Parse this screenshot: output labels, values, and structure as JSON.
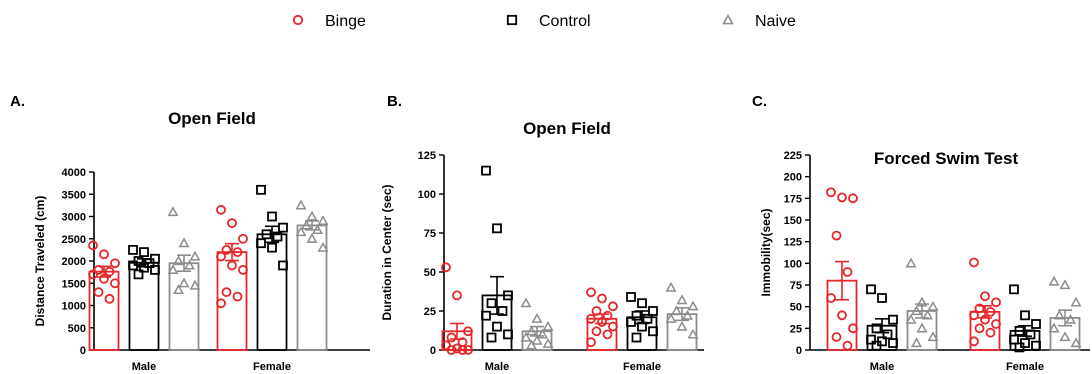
{
  "legend": {
    "items": [
      {
        "label": "Binge",
        "marker": "circle",
        "color": "#e8262a"
      },
      {
        "label": "Control",
        "marker": "square",
        "color": "#000000"
      },
      {
        "label": "Naive",
        "marker": "triangle",
        "color": "#8c8c8c"
      }
    ]
  },
  "chart_data": [
    {
      "type": "bar",
      "panel": "A.",
      "title": "Open Field",
      "xlabel": "",
      "ylabel": "Distance Traveled (cm)",
      "ylim": [
        0,
        4000
      ],
      "yticks": [
        0,
        500,
        1000,
        1500,
        2000,
        2500,
        3000,
        3500,
        4000
      ],
      "categories": [
        "Male",
        "Female"
      ],
      "series": [
        {
          "name": "Binge",
          "values": [
            1760,
            2200
          ],
          "sem": [
            120,
            190
          ],
          "points": [
            [
              2350,
              2150,
              1950,
              1800,
              1760,
              1700,
              1600,
              1500,
              1300,
              1150
            ],
            [
              3150,
              2850,
              2500,
              2250,
              2200,
              2100,
              1900,
              1800,
              1300,
              1200,
              1050
            ]
          ]
        },
        {
          "name": "Control",
          "values": [
            1960,
            2600
          ],
          "sem": [
            90,
            180
          ],
          "points": [
            [
              2250,
              2200,
              2050,
              2000,
              1950,
              1900,
              1850,
              1800,
              1700
            ],
            [
              3600,
              3000,
              2750,
              2600,
              2550,
              2400,
              2300,
              1900
            ]
          ]
        },
        {
          "name": "Naive",
          "values": [
            1950,
            2800
          ],
          "sem": [
            180,
            100
          ],
          "points": [
            [
              3100,
              2400,
              2100,
              2000,
              1900,
              1800,
              1500,
              1450,
              1350
            ],
            [
              3250,
              3000,
              2900,
              2800,
              2700,
              2650,
              2500,
              2300
            ]
          ]
        }
      ]
    },
    {
      "type": "bar",
      "panel": "B.",
      "title": "Open Field",
      "xlabel": "",
      "ylabel": "Duration in Center (sec)",
      "ylim": [
        0,
        125
      ],
      "yticks": [
        0,
        25,
        50,
        75,
        100,
        125
      ],
      "categories": [
        "Male",
        "Female"
      ],
      "series": [
        {
          "name": "Binge",
          "values": [
            12,
            20
          ],
          "sem": [
            5,
            3
          ],
          "points": [
            [
              53,
              35,
              12,
              8,
              5,
              3,
              1,
              0,
              0,
              0
            ],
            [
              37,
              33,
              28,
              25,
              22,
              20,
              18,
              15,
              12,
              10,
              5
            ]
          ]
        },
        {
          "name": "Control",
          "values": [
            35,
            21
          ],
          "sem": [
            12,
            4
          ],
          "points": [
            [
              115,
              78,
              35,
              30,
              25,
              22,
              15,
              10,
              8
            ],
            [
              34,
              30,
              25,
              22,
              20,
              18,
              15,
              12,
              8
            ]
          ]
        },
        {
          "name": "Naive",
          "values": [
            12,
            23
          ],
          "sem": [
            3,
            4
          ],
          "points": [
            [
              30,
              20,
              15,
              12,
              10,
              8,
              6,
              4,
              3
            ],
            [
              40,
              32,
              28,
              25,
              22,
              20,
              15,
              10
            ]
          ]
        }
      ]
    },
    {
      "type": "bar",
      "panel": "C.",
      "title": "Forced Swim Test",
      "xlabel": "",
      "ylabel": "Immobility(sec)",
      "ylim": [
        0,
        225
      ],
      "yticks": [
        0,
        25,
        50,
        75,
        100,
        125,
        150,
        175,
        200,
        225
      ],
      "categories": [
        "Male",
        "Female"
      ],
      "series": [
        {
          "name": "Binge",
          "values": [
            80,
            44
          ],
          "sem": [
            22,
            7
          ],
          "points": [
            [
              182,
              176,
              175,
              132,
              90,
              60,
              40,
              25,
              15,
              5
            ],
            [
              101,
              62,
              55,
              48,
              44,
              40,
              35,
              30,
              25,
              20,
              10
            ]
          ]
        },
        {
          "name": "Control",
          "values": [
            28,
            22
          ],
          "sem": [
            8,
            6
          ],
          "points": [
            [
              70,
              60,
              35,
              25,
              18,
              12,
              10,
              8,
              5
            ],
            [
              70,
              40,
              30,
              22,
              18,
              12,
              8,
              5,
              3
            ]
          ]
        },
        {
          "name": "Naive",
          "values": [
            45,
            37
          ],
          "sem": [
            8,
            9
          ],
          "points": [
            [
              100,
              55,
              50,
              45,
              40,
              35,
              25,
              15,
              8
            ],
            [
              79,
              75,
              55,
              40,
              35,
              25,
              15,
              8
            ]
          ]
        }
      ]
    }
  ]
}
